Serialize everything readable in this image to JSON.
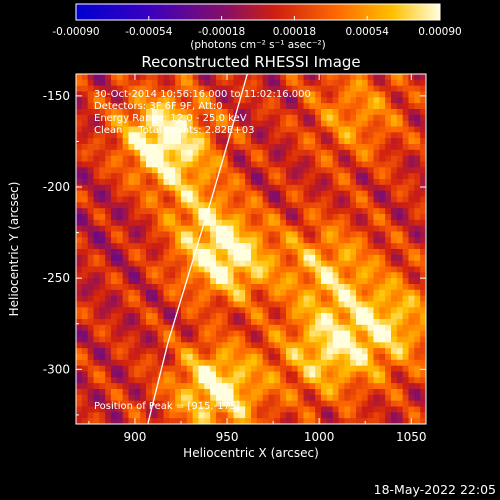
{
  "chart_data": {
    "type": "heatmap",
    "title": "Reconstructed RHESSI Image",
    "xlabel": "Heliocentric X (arcsec)",
    "ylabel": "Heliocentric Y (arcsec)",
    "xlim": [
      868,
      1058
    ],
    "ylim": [
      -330,
      -138
    ],
    "xticks": [
      900,
      950,
      1000,
      1050
    ],
    "yticks": [
      -150,
      -200,
      -250,
      -300
    ],
    "colorbar": {
      "ticks": [
        "-0.00090",
        "-0.00054",
        "-0.00018",
        "0.00018",
        "0.00054",
        "0.00090"
      ],
      "values": [
        -0.0009,
        -0.00054,
        -0.00018,
        0.00018,
        0.00054,
        0.0009
      ],
      "unit": "(photons cm⁻² s⁻¹ asec⁻²)",
      "range": [
        -0.0009,
        0.0009
      ]
    },
    "annotations": [
      "30-Oct-2014 10:56:16.000 to 11:02:16.000",
      "Detectors: 3F 6F 9F, Att:0",
      "Energy Range: 12.0 - 25.0 keV",
      "Clean     Total counts: 2.82E+03"
    ],
    "peak_label": "Position of Peak = [915,-175]",
    "sources": [
      {
        "x": 915,
        "y": -175,
        "value": 0.0009
      },
      {
        "x": 950,
        "y": -240,
        "value": 0.0008
      },
      {
        "x": 945,
        "y": -310,
        "value": 0.00078
      },
      {
        "x": 1005,
        "y": -290,
        "value": 0.00062
      },
      {
        "x": 1040,
        "y": -275,
        "value": 0.00055
      },
      {
        "x": 1005,
        "y": -245,
        "value": 0.0005
      },
      {
        "x": 935,
        "y": -210,
        "value": 0.00045
      },
      {
        "x": 1020,
        "y": -160,
        "value": 0.0004
      }
    ],
    "limb_curve": {
      "x": [
        961,
        952,
        942,
        930,
        918,
        907
      ],
      "y": [
        -138,
        -170,
        -205,
        -245,
        -285,
        -330
      ]
    }
  },
  "timestamp": "18-May-2022 22:05"
}
